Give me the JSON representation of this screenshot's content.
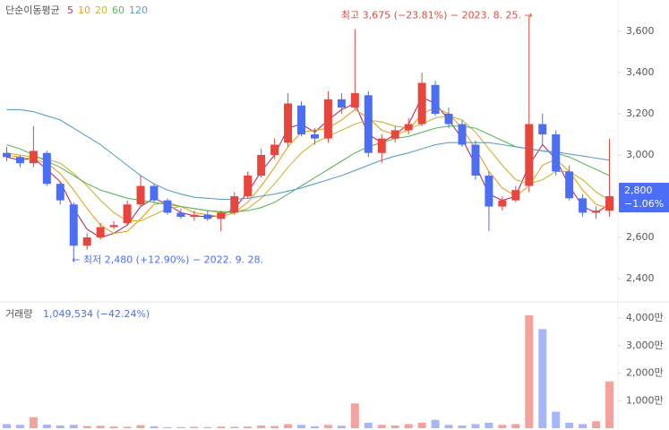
{
  "chart_data": {
    "type": "candlestick",
    "legend_title": "단순이동평균",
    "open": [
      3010,
      2990,
      2960,
      3010,
      2860,
      2760,
      2560,
      2600,
      2650,
      2670,
      2760,
      2850,
      2780,
      2720,
      2700,
      2710,
      2690,
      2720,
      2800,
      2900,
      3000,
      3060,
      3240,
      3100,
      3080,
      3270,
      3230,
      3290,
      3010,
      3080,
      3120,
      3150,
      3340,
      3200,
      3150,
      3050,
      2900,
      2750,
      2780,
      2850,
      3150,
      3100,
      2920,
      2790,
      2720,
      2730
    ],
    "high": [
      3040,
      3000,
      3140,
      3020,
      2870,
      2770,
      2620,
      2670,
      2680,
      2780,
      2900,
      2860,
      2790,
      2740,
      2730,
      2730,
      2730,
      2820,
      2920,
      3030,
      3080,
      3300,
      3260,
      3130,
      3310,
      3300,
      3610,
      3310,
      3100,
      3140,
      3180,
      3400,
      3360,
      3230,
      3170,
      3070,
      2920,
      2800,
      2850,
      3675,
      3200,
      3120,
      2950,
      2810,
      2750,
      3080
    ],
    "low": [
      2970,
      2940,
      2940,
      2850,
      2760,
      2480,
      2540,
      2590,
      2640,
      2660,
      2750,
      2770,
      2710,
      2690,
      2680,
      2680,
      2630,
      2710,
      2790,
      2890,
      2980,
      3040,
      3090,
      3050,
      3060,
      3200,
      3220,
      2990,
      2960,
      3060,
      3100,
      3140,
      3190,
      3130,
      3040,
      2880,
      2630,
      2730,
      2770,
      2820,
      3050,
      2900,
      2780,
      2700,
      2690,
      2700
    ],
    "close": [
      2990,
      2960,
      3020,
      2860,
      2780,
      2560,
      2600,
      2650,
      2660,
      2760,
      2850,
      2780,
      2720,
      2700,
      2710,
      2690,
      2720,
      2800,
      2900,
      3000,
      3050,
      3250,
      3100,
      3080,
      3270,
      3230,
      3300,
      3010,
      3080,
      3120,
      3150,
      3350,
      3200,
      3150,
      3050,
      2900,
      2750,
      2780,
      2830,
      3150,
      3100,
      2920,
      2790,
      2720,
      2730,
      2800
    ],
    "up_color": "#e8453c",
    "down_color": "#4c6ef5",
    "series": [
      {
        "name": "5",
        "color": "#b0306a",
        "values": [
          2990,
          2975,
          2985,
          2930,
          2870,
          2740,
          2640,
          2600,
          2620,
          2660,
          2750,
          2790,
          2760,
          2720,
          2705,
          2700,
          2705,
          2740,
          2820,
          2920,
          3000,
          3130,
          3150,
          3110,
          3170,
          3220,
          3250,
          3100,
          3060,
          3100,
          3150,
          3280,
          3250,
          3170,
          3080,
          2950,
          2810,
          2780,
          2800,
          2950,
          3050,
          2980,
          2850,
          2750,
          2720,
          2760
        ]
      },
      {
        "name": "10",
        "color": "#e8a020",
        "values": [
          3000,
          2990,
          2980,
          2960,
          2910,
          2830,
          2740,
          2660,
          2620,
          2630,
          2690,
          2760,
          2770,
          2750,
          2720,
          2710,
          2700,
          2720,
          2770,
          2850,
          2940,
          3040,
          3110,
          3120,
          3130,
          3170,
          3220,
          3180,
          3120,
          3100,
          3120,
          3200,
          3230,
          3200,
          3130,
          3030,
          2920,
          2840,
          2800,
          2850,
          2950,
          2980,
          2920,
          2830,
          2760,
          2740
        ]
      },
      {
        "name": "20",
        "color": "#c8b830",
        "values": [
          3010,
          3000,
          2990,
          2980,
          2960,
          2910,
          2850,
          2780,
          2720,
          2680,
          2680,
          2710,
          2740,
          2750,
          2740,
          2730,
          2720,
          2720,
          2740,
          2790,
          2860,
          2940,
          3010,
          3060,
          3090,
          3120,
          3150,
          3170,
          3160,
          3140,
          3130,
          3150,
          3180,
          3190,
          3170,
          3110,
          3030,
          2950,
          2880,
          2860,
          2880,
          2920,
          2920,
          2880,
          2820,
          2780
        ]
      },
      {
        "name": "60",
        "color": "#5cb85c",
        "values": [
          3050,
          3030,
          3000,
          2970,
          2940,
          2900,
          2860,
          2830,
          2810,
          2790,
          2780,
          2770,
          2760,
          2750,
          2740,
          2730,
          2725,
          2725,
          2730,
          2745,
          2770,
          2810,
          2850,
          2890,
          2930,
          2970,
          3010,
          3040,
          3060,
          3080,
          3090,
          3110,
          3130,
          3140,
          3140,
          3130,
          3100,
          3070,
          3040,
          3030,
          3020,
          3010,
          2990,
          2960,
          2930,
          2900
        ]
      },
      {
        "name": "120",
        "color": "#5aa0c8",
        "values": [
          3220,
          3220,
          3210,
          3190,
          3170,
          3130,
          3090,
          3050,
          3000,
          2950,
          2900,
          2860,
          2830,
          2810,
          2795,
          2790,
          2785,
          2785,
          2790,
          2800,
          2810,
          2825,
          2840,
          2860,
          2880,
          2900,
          2925,
          2950,
          2975,
          2995,
          3010,
          3030,
          3050,
          3060,
          3060,
          3060,
          3060,
          3050,
          3040,
          3030,
          3020,
          3015,
          3005,
          2995,
          2985,
          2975
        ]
      }
    ],
    "ylim": [
      2296,
      3752
    ],
    "yticks": [
      {
        "value": 2400,
        "label": "2,400"
      },
      {
        "value": 2600,
        "label": "2,600"
      },
      {
        "value": 2800,
        "label": "2,800"
      },
      {
        "value": 3000,
        "label": "3,000"
      },
      {
        "value": 3200,
        "label": "3,200"
      },
      {
        "value": 3400,
        "label": "3,400"
      },
      {
        "value": 3600,
        "label": "3,600"
      }
    ],
    "high_annotation": "최고 3,675 (−23.81%) − 2023. 8. 25. →",
    "low_annotation": "← 최저 2,480 (+12.90%) − 2022. 9. 28.",
    "last_price": {
      "value": 2800,
      "label": "2,800"
    },
    "last_change": "−1.06%",
    "volume_title": "거래량",
    "volume_summary": "1,049,534 (−42.24%)",
    "volume": [
      150,
      120,
      400,
      130,
      100,
      120,
      80,
      90,
      60,
      50,
      110,
      70,
      40,
      40,
      50,
      40,
      60,
      50,
      60,
      100,
      80,
      150,
      120,
      70,
      120,
      90,
      900,
      200,
      120,
      100,
      150,
      200,
      300,
      120,
      100,
      150,
      200,
      120,
      150,
      4100,
      3600,
      600,
      200,
      150,
      250,
      1700
    ],
    "volume_ylim": [
      0,
      4490
    ],
    "volume_yticks": [
      {
        "value": 1000,
        "label": "1,000만"
      },
      {
        "value": 2000,
        "label": "2,000만"
      },
      {
        "value": 3000,
        "label": "3,000만"
      },
      {
        "value": 4000,
        "label": "4,000만"
      }
    ]
  }
}
